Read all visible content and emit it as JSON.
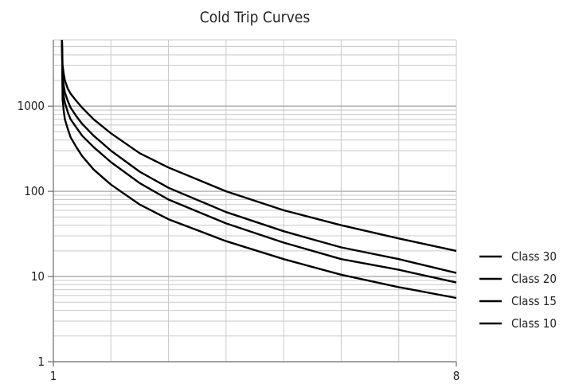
{
  "chart_data": {
    "type": "line",
    "title": "Cold Trip Curves",
    "xlabel": "",
    "ylabel": "",
    "xlim": [
      1,
      8
    ],
    "ylim": [
      1,
      6000
    ],
    "yscale": "log",
    "x_tick_labels": [
      "1",
      "8"
    ],
    "y_tick_labels": [
      "1",
      "10",
      "100",
      "1000"
    ],
    "grid": true,
    "legend_position": "right",
    "series": [
      {
        "name": "Class 30",
        "x": [
          1.15,
          1.16,
          1.18,
          1.2,
          1.25,
          1.3,
          1.4,
          1.5,
          1.7,
          2.0,
          2.5,
          3.0,
          4.0,
          5.0,
          6.0,
          7.0,
          8.0
        ],
        "y": [
          6000,
          3000,
          2400,
          2000,
          1600,
          1400,
          1150,
          960,
          700,
          480,
          280,
          190,
          100,
          60,
          40,
          28,
          20
        ]
      },
      {
        "name": "Class 20",
        "x": [
          1.15,
          1.16,
          1.18,
          1.2,
          1.25,
          1.3,
          1.4,
          1.5,
          1.7,
          2.0,
          2.5,
          3.0,
          4.0,
          5.0,
          6.0,
          7.0,
          8.0
        ],
        "y": [
          6000,
          2200,
          1750,
          1450,
          1150,
          960,
          760,
          620,
          450,
          300,
          170,
          110,
          57,
          34,
          22,
          16,
          11
        ]
      },
      {
        "name": "Class 15",
        "x": [
          1.15,
          1.16,
          1.18,
          1.2,
          1.25,
          1.3,
          1.4,
          1.5,
          1.7,
          2.0,
          2.5,
          3.0,
          4.0,
          5.0,
          6.0,
          7.0,
          8.0
        ],
        "y": [
          6000,
          1700,
          1300,
          1100,
          850,
          700,
          560,
          450,
          330,
          220,
          125,
          80,
          42,
          25,
          16,
          12,
          8.5
        ]
      },
      {
        "name": "Class 10",
        "x": [
          1.15,
          1.16,
          1.18,
          1.2,
          1.25,
          1.3,
          1.4,
          1.5,
          1.7,
          2.0,
          2.5,
          3.0,
          4.0,
          5.0,
          6.0,
          7.0,
          8.0
        ],
        "y": [
          6000,
          1200,
          880,
          700,
          540,
          430,
          330,
          260,
          180,
          120,
          70,
          47,
          26,
          16,
          10.5,
          7.5,
          5.6
        ]
      }
    ],
    "colors": {
      "line": "#000000",
      "grid_minor": "#c9c9c9",
      "grid_major": "#a8a8a8"
    }
  }
}
